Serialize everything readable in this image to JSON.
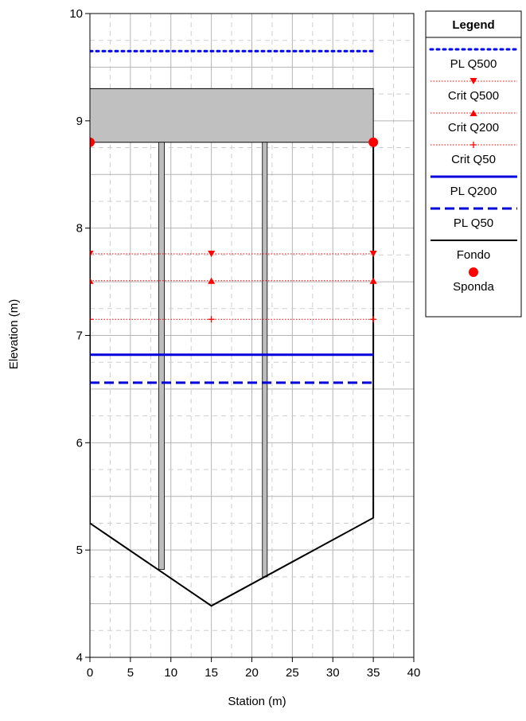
{
  "chart_data": {
    "type": "line",
    "title": "",
    "xlabel": "Station (m)",
    "ylabel": "Elevation (m)",
    "xlim": [
      0,
      40
    ],
    "ylim": [
      4,
      10
    ],
    "x_ticks": [
      0,
      5,
      10,
      15,
      20,
      25,
      30,
      35,
      40
    ],
    "y_ticks": [
      4,
      5,
      6,
      7,
      8,
      9,
      10
    ],
    "grid": true,
    "legend_position": "right",
    "legend_title": "Legend",
    "deck": {
      "x": [
        0,
        35
      ],
      "y_bottom": 8.8,
      "y_top": 9.3,
      "color": "#c0c0c0"
    },
    "piers": [
      {
        "x": [
          8.5,
          9.2
        ],
        "y_bottom": 4.82,
        "y_top": 8.8
      },
      {
        "x": [
          21.3,
          21.9
        ],
        "y_bottom": 4.75,
        "y_top": 8.8
      }
    ],
    "series": [
      {
        "name": "PL Q500",
        "style": "dotted",
        "color": "#0000ee",
        "x": [
          0,
          35
        ],
        "y": [
          9.65,
          9.65
        ]
      },
      {
        "name": "Crit Q500",
        "style": "thin-dotted",
        "marker": "triangle-down",
        "color": "#ff0000",
        "x": [
          0,
          15,
          35
        ],
        "y": [
          7.76,
          7.76,
          7.76
        ]
      },
      {
        "name": "Crit Q200",
        "style": "thin-dotted",
        "marker": "triangle-up",
        "color": "#ff0000",
        "x": [
          0,
          15,
          35
        ],
        "y": [
          7.51,
          7.51,
          7.51
        ]
      },
      {
        "name": "Crit Q50",
        "style": "thin-dotted",
        "marker": "plus",
        "color": "#ff0000",
        "x": [
          0,
          15,
          35
        ],
        "y": [
          7.15,
          7.15,
          7.15
        ]
      },
      {
        "name": "PL Q200",
        "style": "solid",
        "color": "#0000dd",
        "x": [
          0,
          35
        ],
        "y": [
          6.82,
          6.82
        ]
      },
      {
        "name": "PL Q50",
        "style": "dashed",
        "color": "#0000dd",
        "x": [
          0,
          35
        ],
        "y": [
          6.56,
          6.56
        ]
      },
      {
        "name": "Fondo",
        "style": "solid",
        "color": "#000000",
        "x": [
          0,
          0,
          15,
          35,
          35
        ],
        "y": [
          8.8,
          5.25,
          4.48,
          5.3,
          8.8
        ]
      },
      {
        "name": "Sponda",
        "style": "marker-only",
        "marker": "circle",
        "color": "#ff0000",
        "x": [
          0,
          35
        ],
        "y": [
          8.8,
          8.8
        ]
      }
    ]
  }
}
